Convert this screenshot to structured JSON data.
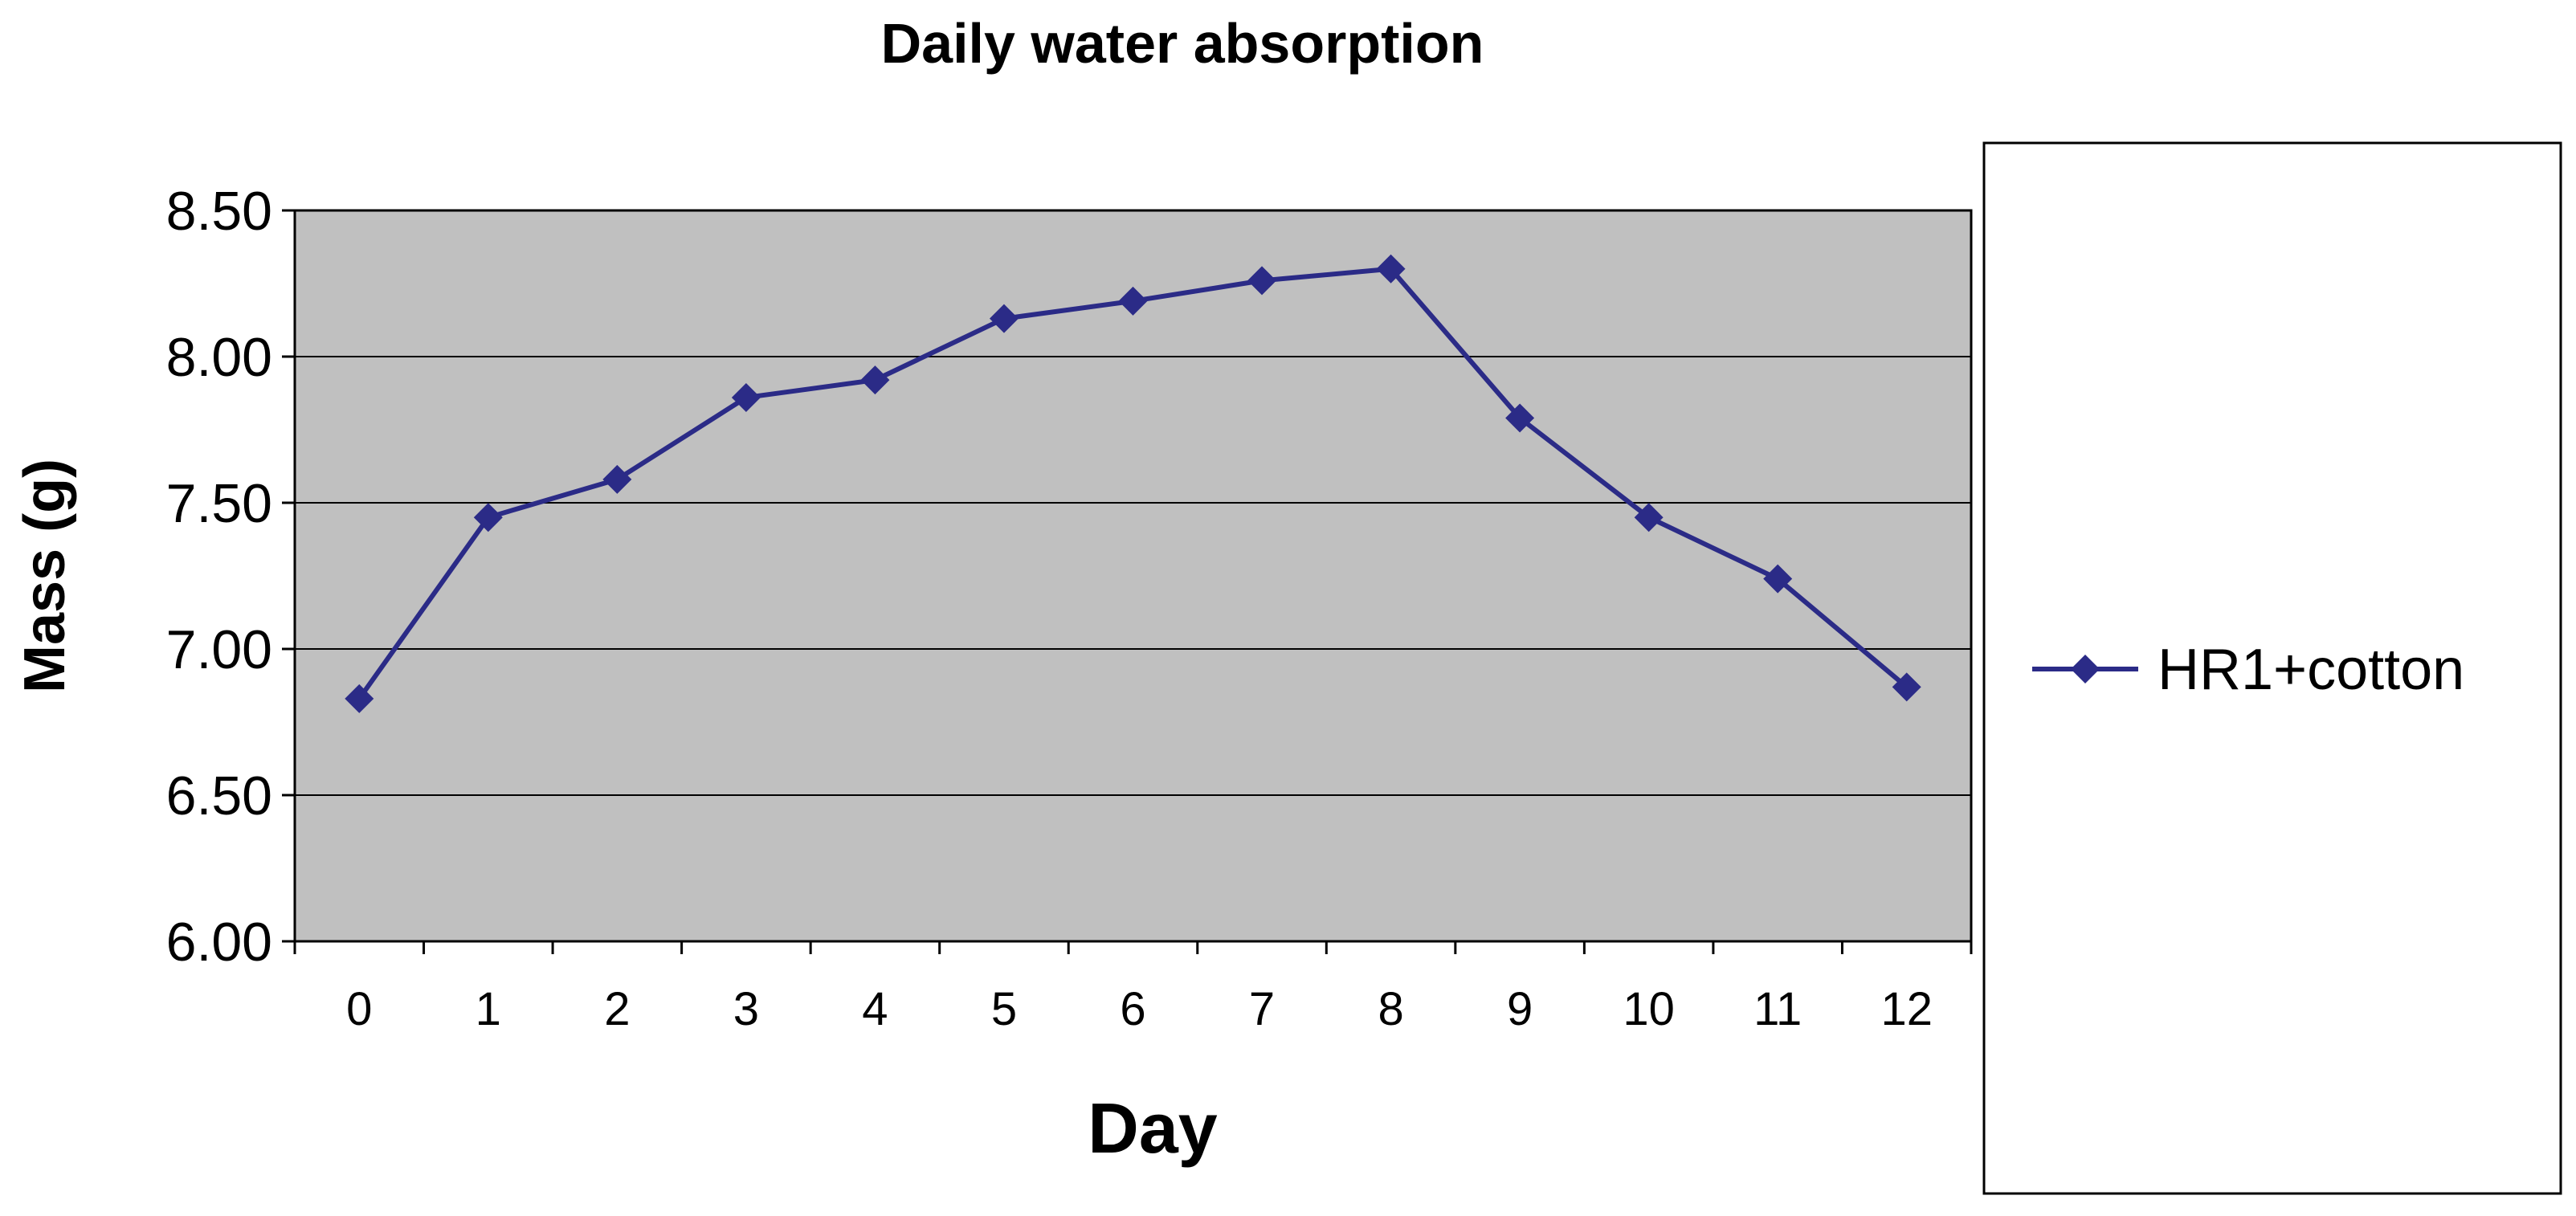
{
  "chart_data": {
    "type": "line",
    "title": "Daily water absorption",
    "xlabel": "Day",
    "ylabel": "Mass (g)",
    "categories": [
      "0",
      "1",
      "2",
      "3",
      "4",
      "5",
      "6",
      "7",
      "8",
      "9",
      "10",
      "11",
      "12"
    ],
    "yticks": [
      "6.00",
      "6.50",
      "7.00",
      "7.50",
      "8.00",
      "8.50"
    ],
    "ylim": [
      6.0,
      8.5
    ],
    "grid": true,
    "legend_position": "right",
    "series": [
      {
        "name": "HR1+cotton",
        "values": [
          6.83,
          7.45,
          7.58,
          7.86,
          7.92,
          8.13,
          8.19,
          8.26,
          8.3,
          7.79,
          7.45,
          7.24,
          6.87
        ]
      }
    ]
  },
  "colors": {
    "plot_background": "#c0c0c0",
    "series_line": "#2b2b87",
    "gridline": "#000000",
    "axis": "#000000"
  }
}
